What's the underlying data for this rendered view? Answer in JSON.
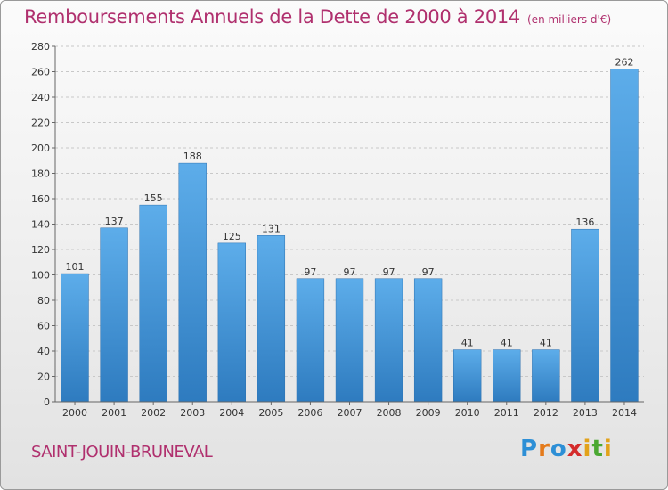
{
  "header": {
    "title": "Remboursements Annuels de la Dette de 2000 à 2014",
    "unit": "(en milliers d'€)"
  },
  "footer": {
    "commune": "SAINT-JOUIN-BRUNEVAL",
    "logo": "Proxiti"
  },
  "colors": {
    "title": "#b0306e",
    "bar_light": "#5dadea",
    "bar_dark": "#2e7bbf"
  },
  "chart_data": {
    "type": "bar",
    "title": "Remboursements Annuels de la Dette de 2000 à 2014",
    "subtitle": "(en milliers d'€)",
    "xlabel": "",
    "ylabel": "",
    "categories": [
      "2000",
      "2001",
      "2002",
      "2003",
      "2004",
      "2005",
      "2006",
      "2007",
      "2008",
      "2009",
      "2010",
      "2011",
      "2012",
      "2013",
      "2014"
    ],
    "values": [
      101,
      137,
      155,
      188,
      125,
      131,
      97,
      97,
      97,
      97,
      41,
      41,
      41,
      136,
      262
    ],
    "ylim": [
      0,
      280
    ],
    "yticks": [
      0,
      20,
      40,
      60,
      80,
      100,
      120,
      140,
      160,
      180,
      200,
      220,
      240,
      260,
      280
    ],
    "grid": true,
    "data_labels": true
  }
}
